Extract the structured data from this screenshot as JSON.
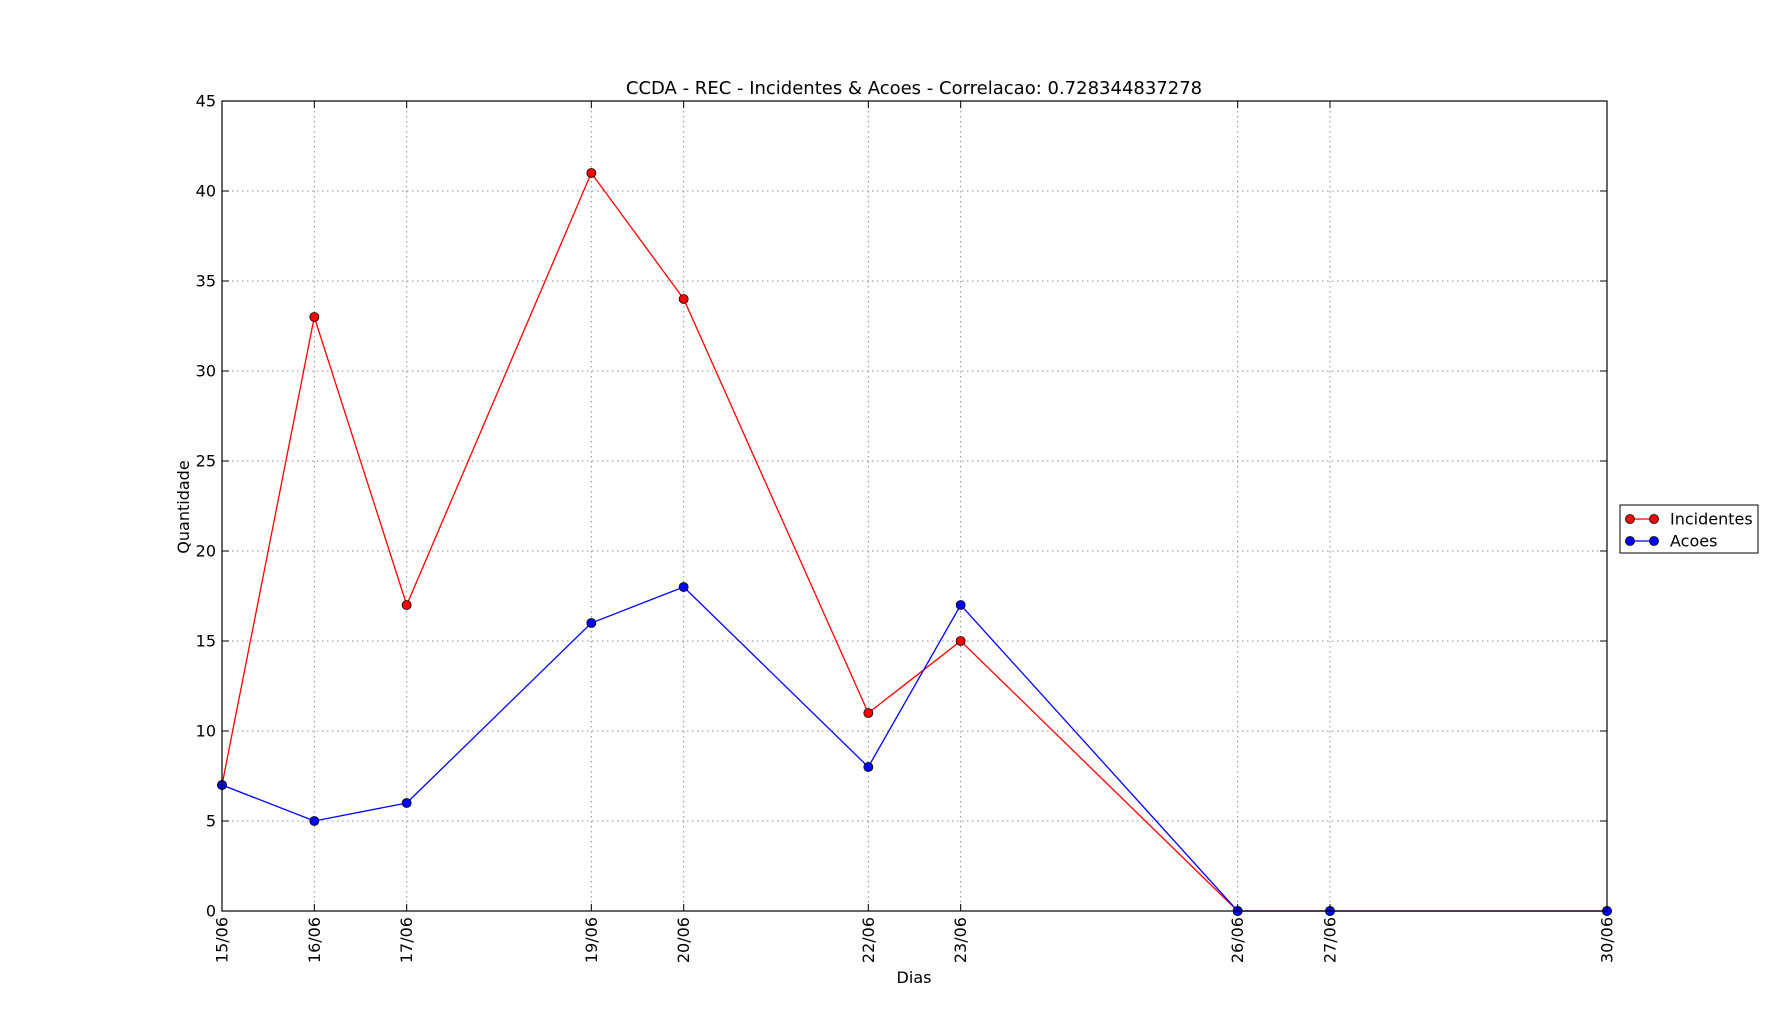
{
  "chart_data": {
    "type": "line",
    "title": "CCDA - REC - Incidentes & Acoes - Correlacao: 0.728344837278",
    "xlabel": "Dias",
    "ylabel": "Quantidade",
    "x_dates": [
      "15/06",
      "16/06",
      "17/06",
      "19/06",
      "20/06",
      "22/06",
      "23/06",
      "26/06",
      "27/06",
      "30/06"
    ],
    "x_tick_labels": [
      "15/06",
      "16/06",
      "17/06",
      "19/06",
      "20/06",
      "22/06",
      "23/06",
      "26/06",
      "27/06",
      "30/06"
    ],
    "ylim": [
      0,
      45
    ],
    "y_ticks": [
      0,
      5,
      10,
      15,
      20,
      25,
      30,
      35,
      40,
      45
    ],
    "y_tick_labels": [
      "0",
      "5",
      "10",
      "15",
      "20",
      "25",
      "30",
      "35",
      "40",
      "45"
    ],
    "grid": true,
    "legend_position": "right",
    "series": [
      {
        "name": "Incidentes",
        "color": "#ff0000",
        "values": [
          7,
          33,
          17,
          41,
          34,
          11,
          15,
          0,
          0,
          0
        ]
      },
      {
        "name": "Acoes",
        "color": "#0000ff",
        "values": [
          7,
          5,
          6,
          16,
          18,
          8,
          17,
          0,
          0,
          0
        ]
      }
    ]
  }
}
